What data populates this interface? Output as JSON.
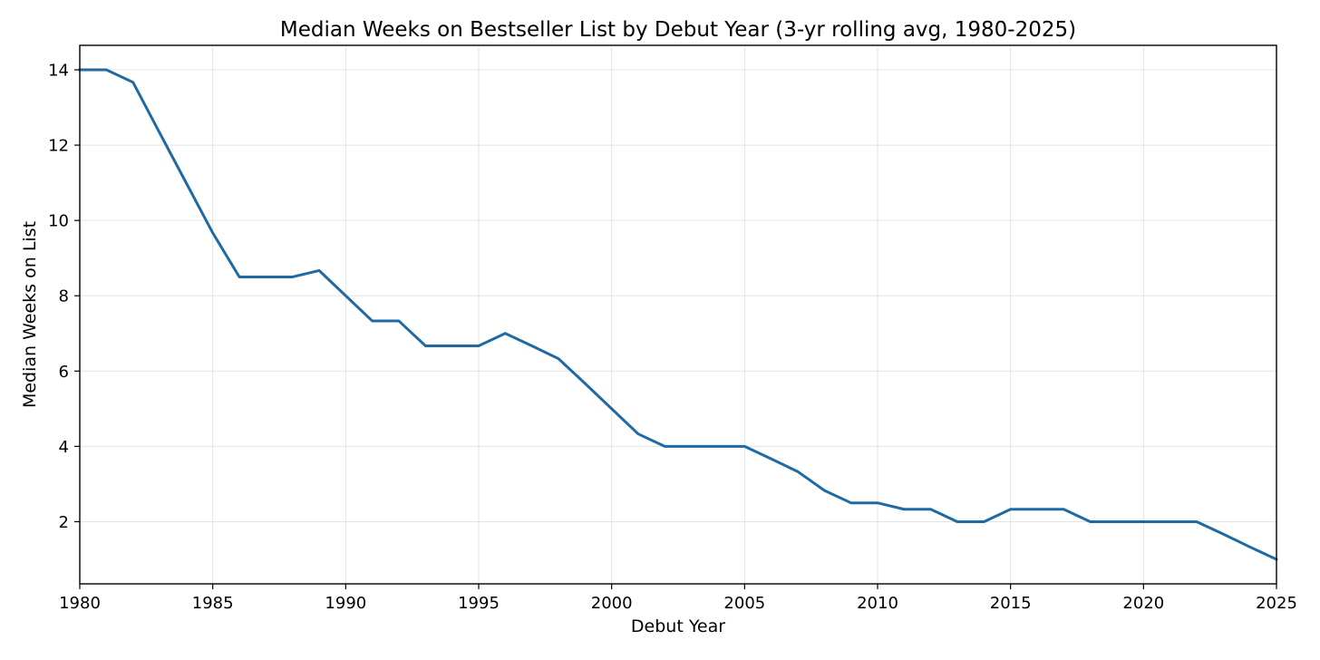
{
  "chart_data": {
    "type": "line",
    "title": "Median Weeks on Bestseller List by Debut Year (3-yr rolling avg, 1980-2025)",
    "xlabel": "Debut Year",
    "ylabel": "Median Weeks on List",
    "xlim": [
      1980,
      2025
    ],
    "ylim": [
      0.35,
      14.65
    ],
    "grid": true,
    "x_ticks": [
      1980,
      1985,
      1990,
      1995,
      2000,
      2005,
      2010,
      2015,
      2020,
      2025
    ],
    "y_ticks": [
      2,
      4,
      6,
      8,
      10,
      12,
      14
    ],
    "color": "#1f6aa5",
    "x": [
      1980,
      1981,
      1982,
      1983,
      1984,
      1985,
      1986,
      1987,
      1988,
      1989,
      1990,
      1991,
      1992,
      1993,
      1994,
      1995,
      1996,
      1997,
      1998,
      1999,
      2000,
      2001,
      2002,
      2003,
      2004,
      2005,
      2006,
      2007,
      2008,
      2009,
      2010,
      2011,
      2012,
      2013,
      2014,
      2015,
      2016,
      2017,
      2018,
      2019,
      2020,
      2021,
      2022,
      2023,
      2024,
      2025
    ],
    "y": [
      14.0,
      14.0,
      13.67,
      12.33,
      11.0,
      9.67,
      8.5,
      8.5,
      8.5,
      8.67,
      8.0,
      7.33,
      7.33,
      6.67,
      6.67,
      6.67,
      7.0,
      6.67,
      6.33,
      5.67,
      5.0,
      4.33,
      4.0,
      4.0,
      4.0,
      4.0,
      3.67,
      3.33,
      2.83,
      2.5,
      2.5,
      2.33,
      2.33,
      2.0,
      2.0,
      2.33,
      2.33,
      2.33,
      2.0,
      2.0,
      2.0,
      2.0,
      2.0,
      1.67,
      1.33,
      1.0
    ]
  }
}
